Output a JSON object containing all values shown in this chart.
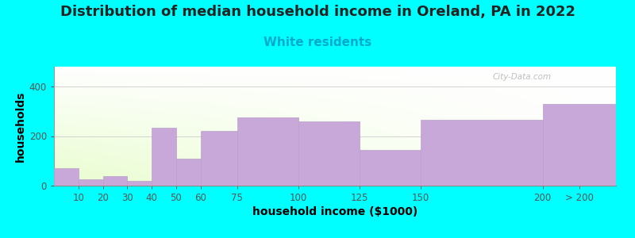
{
  "title": "Distribution of median household income in Oreland, PA in 2022",
  "subtitle": "White residents",
  "xlabel": "household income ($1000)",
  "ylabel": "households",
  "background_color": "#00FFFF",
  "bar_color": "#C8A8D8",
  "bar_edge_color": "#B8A0CC",
  "bin_edges": [
    0,
    10,
    20,
    30,
    40,
    50,
    60,
    75,
    100,
    125,
    150,
    200,
    230
  ],
  "bin_labels": [
    "10",
    "20",
    "30",
    "40",
    "50",
    "60",
    "75",
    "100",
    "125",
    "150",
    "200",
    "> 200"
  ],
  "values": [
    70,
    25,
    40,
    20,
    235,
    110,
    220,
    275,
    260,
    145,
    265,
    330
  ],
  "ylim": [
    0,
    480
  ],
  "yticks": [
    0,
    200,
    400
  ],
  "title_fontsize": 13,
  "subtitle_fontsize": 11,
  "subtitle_color": "#00AACC",
  "axis_label_fontsize": 10,
  "tick_fontsize": 8.5,
  "watermark": "City-Data.com"
}
